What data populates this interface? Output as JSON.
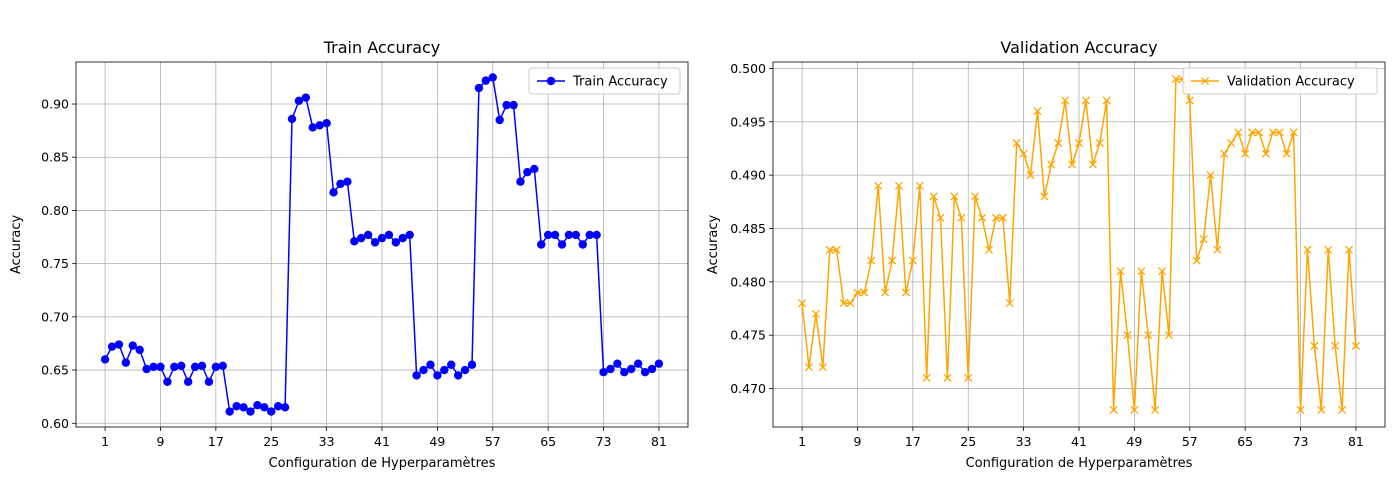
{
  "chart_data": [
    {
      "type": "line",
      "title": "Train Accuracy",
      "xlabel": "Configuration de Hyperparamètres",
      "ylabel": "Accuracy",
      "xlim": [
        -3.2,
        85.2
      ],
      "ylim": [
        0.5965,
        0.9395
      ],
      "xticks": [
        1,
        9,
        17,
        25,
        33,
        41,
        49,
        57,
        65,
        73,
        81
      ],
      "yticks": [
        0.6,
        0.65,
        0.7,
        0.75,
        0.8,
        0.85,
        0.9
      ],
      "ytick_labels": [
        "0.60",
        "0.65",
        "0.70",
        "0.75",
        "0.80",
        "0.85",
        "0.90"
      ],
      "grid": true,
      "legend_position": "top-right",
      "series": [
        {
          "name": "Train Accuracy",
          "color": "#0000ff",
          "marker": "circle",
          "x": [
            1,
            2,
            3,
            4,
            5,
            6,
            7,
            8,
            9,
            10,
            11,
            12,
            13,
            14,
            15,
            16,
            17,
            18,
            19,
            20,
            21,
            22,
            23,
            24,
            25,
            26,
            27,
            28,
            29,
            30,
            31,
            32,
            33,
            34,
            35,
            36,
            37,
            38,
            39,
            40,
            41,
            42,
            43,
            44,
            45,
            46,
            47,
            48,
            49,
            50,
            51,
            52,
            53,
            54,
            55,
            56,
            57,
            58,
            59,
            60,
            61,
            62,
            63,
            64,
            65,
            66,
            67,
            68,
            69,
            70,
            71,
            72,
            73,
            74,
            75,
            76,
            77,
            78,
            79,
            80,
            81
          ],
          "values": [
            0.66,
            0.672,
            0.674,
            0.657,
            0.673,
            0.669,
            0.651,
            0.653,
            0.653,
            0.639,
            0.653,
            0.654,
            0.639,
            0.653,
            0.654,
            0.639,
            0.653,
            0.654,
            0.611,
            0.616,
            0.615,
            0.611,
            0.617,
            0.615,
            0.611,
            0.616,
            0.615,
            0.886,
            0.903,
            0.906,
            0.878,
            0.88,
            0.882,
            0.817,
            0.825,
            0.827,
            0.771,
            0.774,
            0.777,
            0.77,
            0.774,
            0.777,
            0.77,
            0.774,
            0.777,
            0.645,
            0.65,
            0.655,
            0.645,
            0.65,
            0.655,
            0.645,
            0.65,
            0.655,
            0.915,
            0.922,
            0.925,
            0.885,
            0.899,
            0.899,
            0.827,
            0.836,
            0.839,
            0.768,
            0.777,
            0.777,
            0.768,
            0.777,
            0.777,
            0.768,
            0.777,
            0.777,
            0.648,
            0.651,
            0.656,
            0.648,
            0.651,
            0.656,
            0.648,
            0.651,
            0.656
          ]
        }
      ]
    },
    {
      "type": "line",
      "title": "Validation Accuracy",
      "xlabel": "Configuration de Hyperparamètres",
      "ylabel": "Accuracy",
      "xlim": [
        -3.2,
        85.2
      ],
      "ylim": [
        0.4664,
        0.5006
      ],
      "xticks": [
        1,
        9,
        17,
        25,
        33,
        41,
        49,
        57,
        65,
        73,
        81
      ],
      "yticks": [
        0.47,
        0.475,
        0.48,
        0.485,
        0.49,
        0.495,
        0.5
      ],
      "ytick_labels": [
        "0.470",
        "0.475",
        "0.480",
        "0.485",
        "0.490",
        "0.495",
        "0.500"
      ],
      "grid": true,
      "legend_position": "top-right",
      "series": [
        {
          "name": "Validation Accuracy",
          "color": "#ffa500",
          "marker": "x",
          "x": [
            1,
            2,
            3,
            4,
            5,
            6,
            7,
            8,
            9,
            10,
            11,
            12,
            13,
            14,
            15,
            16,
            17,
            18,
            19,
            20,
            21,
            22,
            23,
            24,
            25,
            26,
            27,
            28,
            29,
            30,
            31,
            32,
            33,
            34,
            35,
            36,
            37,
            38,
            39,
            40,
            41,
            42,
            43,
            44,
            45,
            46,
            47,
            48,
            49,
            50,
            51,
            52,
            53,
            54,
            55,
            56,
            57,
            58,
            59,
            60,
            61,
            62,
            63,
            64,
            65,
            66,
            67,
            68,
            69,
            70,
            71,
            72,
            73,
            74,
            75,
            76,
            77,
            78,
            79,
            80,
            81
          ],
          "values": [
            0.478,
            0.472,
            0.477,
            0.472,
            0.483,
            0.483,
            0.478,
            0.478,
            0.479,
            0.479,
            0.482,
            0.489,
            0.479,
            0.482,
            0.489,
            0.479,
            0.482,
            0.489,
            0.471,
            0.488,
            0.486,
            0.471,
            0.488,
            0.486,
            0.471,
            0.488,
            0.486,
            0.483,
            0.486,
            0.486,
            0.478,
            0.493,
            0.492,
            0.49,
            0.496,
            0.488,
            0.491,
            0.493,
            0.497,
            0.491,
            0.493,
            0.497,
            0.491,
            0.493,
            0.497,
            0.468,
            0.481,
            0.475,
            0.468,
            0.481,
            0.475,
            0.468,
            0.481,
            0.475,
            0.499,
            0.499,
            0.497,
            0.482,
            0.484,
            0.49,
            0.483,
            0.492,
            0.493,
            0.494,
            0.492,
            0.494,
            0.494,
            0.492,
            0.494,
            0.494,
            0.492,
            0.494,
            0.468,
            0.483,
            0.474,
            0.468,
            0.483,
            0.474,
            0.468,
            0.483,
            0.474
          ]
        }
      ]
    }
  ]
}
